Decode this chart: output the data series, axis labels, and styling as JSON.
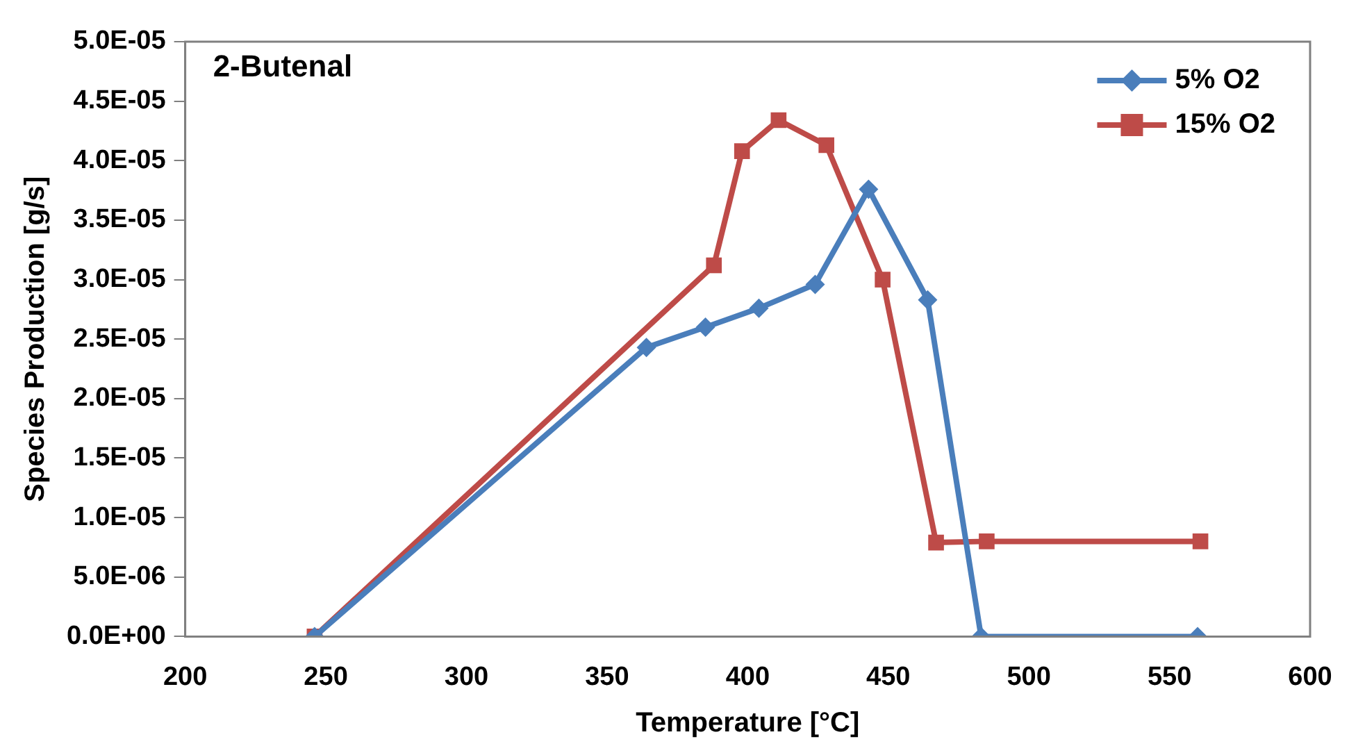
{
  "chart_data": {
    "type": "line",
    "title": "2-Butenal",
    "xlabel": "Temperature [°C]",
    "ylabel": "Species Production [g/s]",
    "xlim": [
      200,
      600
    ],
    "xticks": [
      200,
      250,
      300,
      350,
      400,
      450,
      500,
      550,
      600
    ],
    "ylim": [
      0,
      5e-05
    ],
    "yticks": [
      {
        "value": 0,
        "label": "0.0E+00"
      },
      {
        "value": 5e-06,
        "label": "5.0E-06"
      },
      {
        "value": 1e-05,
        "label": "1.0E-05"
      },
      {
        "value": 1.5e-05,
        "label": "1.5E-05"
      },
      {
        "value": 2e-05,
        "label": "2.0E-05"
      },
      {
        "value": 2.5e-05,
        "label": "2.5E-05"
      },
      {
        "value": 3e-05,
        "label": "3.0E-05"
      },
      {
        "value": 3.5e-05,
        "label": "3.5E-05"
      },
      {
        "value": 4e-05,
        "label": "4.0E-05"
      },
      {
        "value": 4.5e-05,
        "label": "4.5E-05"
      },
      {
        "value": 5e-05,
        "label": "5.0E-05"
      }
    ],
    "grid": false,
    "legend": "top right",
    "series": [
      {
        "name": "5% O2",
        "color": "#4a7ebb",
        "marker": "diamond",
        "x": [
          246,
          364,
          385,
          404,
          424,
          443,
          464,
          483,
          560
        ],
        "values": [
          0,
          2.43e-05,
          2.6e-05,
          2.76e-05,
          2.96e-05,
          3.76e-05,
          2.83e-05,
          0,
          0
        ]
      },
      {
        "name": "15% O2",
        "color": "#be4b48",
        "marker": "square",
        "x": [
          246,
          388,
          398,
          411,
          428,
          448,
          467,
          485,
          561
        ],
        "values": [
          0,
          3.12e-05,
          4.08e-05,
          4.34e-05,
          4.13e-05,
          3e-05,
          7.9e-06,
          8e-06,
          8e-06
        ]
      }
    ]
  }
}
